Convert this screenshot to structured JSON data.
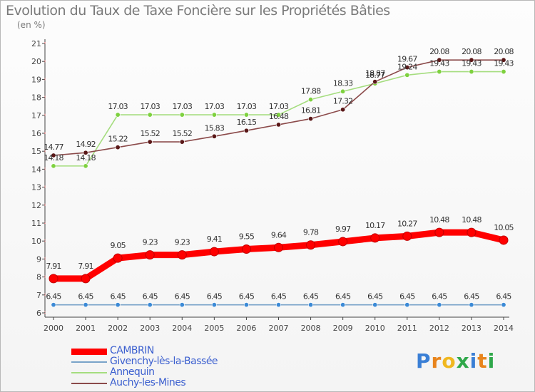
{
  "header": {
    "title": "Evolution du Taux de Taxe Foncière sur les Propriétés Bâties",
    "unit": "(en %)"
  },
  "brand": {
    "letters": [
      "P",
      "r",
      "o",
      "x",
      "i",
      "t",
      "i"
    ],
    "colors": [
      "#3a7fd5",
      "#e8841c",
      "#f0b820",
      "#2fa84a",
      "#3a7fd5",
      "#e8841c",
      "#2fa84a"
    ]
  },
  "chart_data": {
    "type": "line",
    "title": "Evolution du Taux de Taxe Foncière sur les Propriétés Bâties",
    "ylabel": "(en %)",
    "xlabel": "",
    "ylim": [
      6,
      21
    ],
    "yticks": [
      6,
      7,
      8,
      9,
      10,
      11,
      12,
      13,
      14,
      15,
      16,
      17,
      18,
      19,
      20,
      21
    ],
    "x": [
      "2000",
      "2001",
      "2002",
      "2003",
      "2004",
      "2005",
      "2006",
      "2007",
      "2008",
      "2009",
      "2010",
      "2011",
      "2012",
      "2013",
      "2014"
    ],
    "grid": false,
    "legend_position": "bottom-left",
    "series": [
      {
        "name": "CAMBRIN",
        "color": "#ff0000",
        "marker": "#ff0000",
        "style": "thick",
        "values": [
          7.91,
          7.91,
          9.05,
          9.23,
          9.23,
          9.41,
          9.55,
          9.64,
          9.78,
          9.97,
          10.17,
          10.27,
          10.48,
          10.48,
          10.05
        ],
        "labels": [
          "7.91",
          "7.91",
          "9.05",
          "9.23",
          "9.23",
          "9.41",
          "9.55",
          "9.64",
          "9.78",
          "9.97",
          "10.17",
          "10.27",
          "10.48",
          "10.48",
          "10.05"
        ]
      },
      {
        "name": "Givenchy-lès-la-Bassée",
        "color": "#79a3c9",
        "marker": "#3c8ad6",
        "style": "thin",
        "values": [
          6.45,
          6.45,
          6.45,
          6.45,
          6.45,
          6.45,
          6.45,
          6.45,
          6.45,
          6.45,
          6.45,
          6.45,
          6.45,
          6.45,
          6.45
        ],
        "labels": [
          "6.45",
          "6.45",
          "6.45",
          "6.45",
          "6.45",
          "6.45",
          "6.45",
          "6.45",
          "6.45",
          "6.45",
          "6.45",
          "6.45",
          "6.45",
          "6.45",
          "6.45"
        ]
      },
      {
        "name": "Annequin",
        "color": "#a5dd7f",
        "marker": "#7ed13f",
        "style": "thin",
        "values": [
          14.18,
          14.18,
          17.03,
          17.03,
          17.03,
          17.03,
          17.03,
          17.03,
          17.88,
          18.33,
          18.77,
          19.24,
          19.43,
          19.43,
          19.43
        ],
        "labels": [
          "14.18",
          "14.18",
          "17.03",
          "17.03",
          "17.03",
          "17.03",
          "17.03",
          "17.03",
          "17.88",
          "18.33",
          "18.77",
          "19.24",
          "19.43",
          "19.43",
          "19.43"
        ]
      },
      {
        "name": "Auchy-les-Mines",
        "color": "#8b4a4a",
        "marker": "#5a1818",
        "style": "thin",
        "values": [
          14.77,
          14.92,
          15.22,
          15.52,
          15.52,
          15.83,
          16.15,
          16.48,
          16.81,
          17.32,
          18.87,
          19.67,
          20.08,
          20.08,
          20.08
        ],
        "labels": [
          "14.77",
          "14.92",
          "15.22",
          "15.52",
          "15.52",
          "15.83",
          "16.15",
          "16.48",
          "16.81",
          "17.32",
          "18.87",
          "19.67",
          "20.08",
          "20.08",
          "20.08"
        ]
      }
    ]
  }
}
